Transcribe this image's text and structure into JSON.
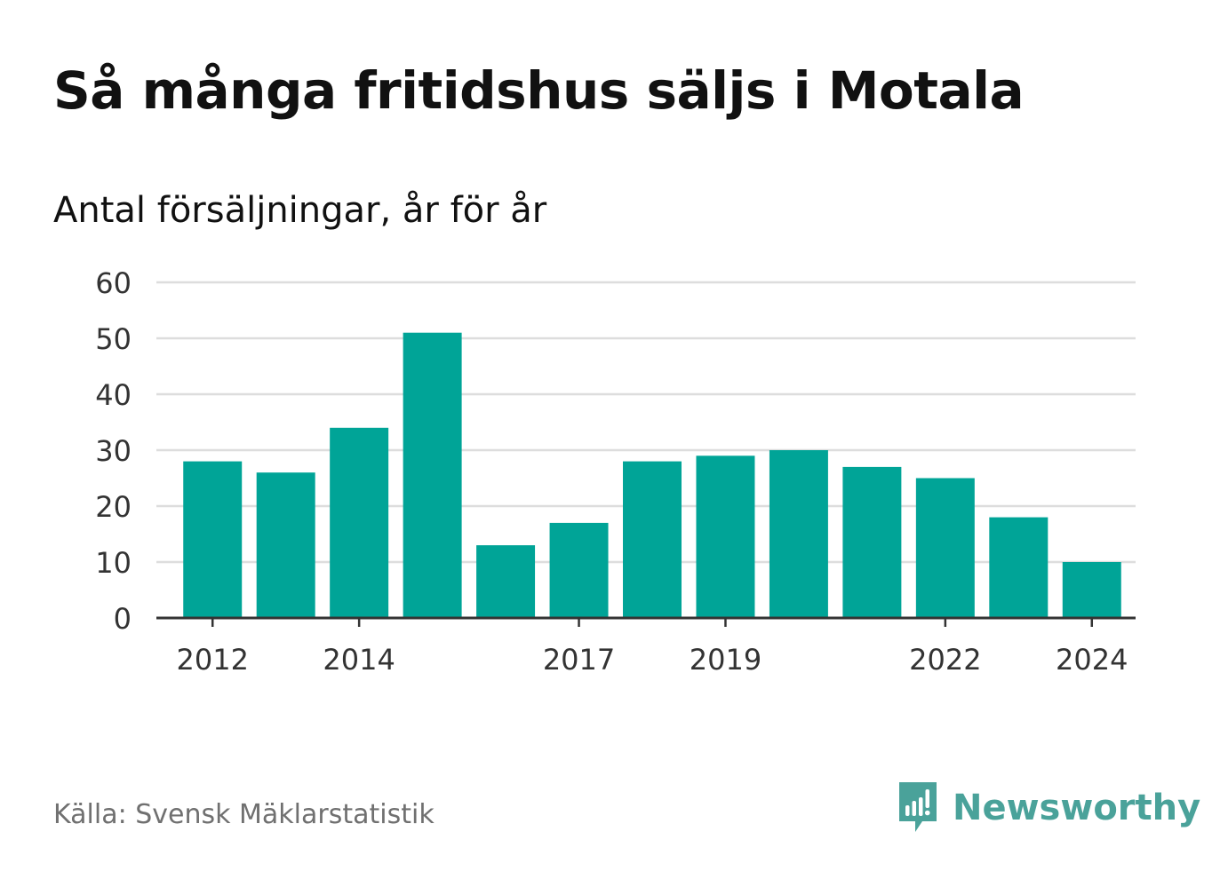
{
  "header": {
    "title": "Så många fritidshus säljs i Motala",
    "subtitle": "Antal försäljningar, år för år"
  },
  "footer": {
    "source": "Källa: Svensk Mäklarstatistik",
    "brand": "Newsworthy"
  },
  "colors": {
    "bar": "#00a497",
    "grid": "#dddddd",
    "axis": "#333333",
    "text": "#111111",
    "brand": "#4aa29a"
  },
  "icons": {
    "brand_logo": "newsworthy-logo-icon"
  },
  "chart_data": {
    "type": "bar",
    "title": "Så många fritidshus säljs i Motala",
    "subtitle": "Antal försäljningar, år för år",
    "categories": [
      "2012",
      "2013",
      "2014",
      "2015",
      "2016",
      "2017",
      "2018",
      "2019",
      "2020",
      "2021",
      "2022",
      "2023",
      "2024"
    ],
    "values": [
      28,
      26,
      34,
      51,
      13,
      17,
      28,
      29,
      30,
      27,
      25,
      18,
      10
    ],
    "x_tick_labels": [
      "2012",
      "2014",
      "2017",
      "2019",
      "2022",
      "2024"
    ],
    "y_ticks": [
      0,
      10,
      20,
      30,
      40,
      50,
      60
    ],
    "ylim": [
      0,
      60
    ],
    "xlabel": "",
    "ylabel": "",
    "grid": true,
    "legend": "none"
  }
}
